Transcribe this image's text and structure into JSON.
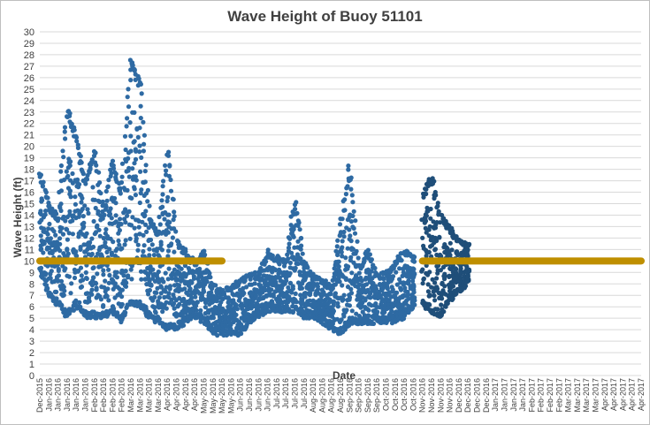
{
  "chart_data": {
    "type": "scatter",
    "title": "Wave Height of Buoy 51101",
    "xlabel": "Date",
    "ylabel": "Wave Height (ft)",
    "ylim": [
      0,
      30
    ],
    "y_ticks": [
      0,
      1,
      2,
      3,
      4,
      5,
      6,
      7,
      8,
      9,
      10,
      11,
      12,
      13,
      14,
      15,
      16,
      17,
      18,
      19,
      20,
      21,
      22,
      23,
      24,
      25,
      26,
      27,
      28,
      29,
      30
    ],
    "grid": "horizontal",
    "x_tick_labels": [
      "Dec-2015",
      "Jan-2016",
      "Jan-2016",
      "Jan-2016",
      "Jan-2016",
      "Jan-2016",
      "Feb-2016",
      "Feb-2016",
      "Feb-2016",
      "Feb-2016",
      "Mar-2016",
      "Mar-2016",
      "Mar-2016",
      "Mar-2016",
      "Apr-2016",
      "Apr-2016",
      "Apr-2016",
      "Apr-2016",
      "May-2016",
      "May-2016",
      "May-2016",
      "May-2016",
      "Jun-2016",
      "Jun-2016",
      "Jun-2016",
      "Jun-2016",
      "Jul-2016",
      "Jul-2016",
      "Jul-2016",
      "Jul-2016",
      "Aug-2016",
      "Aug-2016",
      "Aug-2016",
      "Aug-2016",
      "Sep-2016",
      "Sep-2016",
      "Sep-2016",
      "Sep-2016",
      "Oct-2016",
      "Oct-2016",
      "Oct-2016",
      "Oct-2016",
      "Nov-2016",
      "Nov-2016",
      "Nov-2016",
      "Nov-2016",
      "Dec-2016",
      "Dec-2016",
      "Dec-2016",
      "Dec-2016",
      "Jan-2017",
      "Jan-2017",
      "Jan-2017",
      "Jan-2017",
      "Feb-2017",
      "Feb-2017",
      "Feb-2017",
      "Feb-2017",
      "Mar-2017",
      "Mar-2017",
      "Mar-2017",
      "Mar-2017",
      "Apr-2017",
      "Apr-2017",
      "Apr-2017",
      "Apr-2017",
      "Apr-2017"
    ],
    "series": [
      {
        "color": "#2e6aa3",
        "x_range": [
          "Dec-2015",
          "Nov-2016"
        ],
        "envelope": [
          {
            "x": 0,
            "low": 9,
            "high": 18
          },
          {
            "x": 1,
            "low": 7,
            "high": 15
          },
          {
            "x": 2,
            "low": 6,
            "high": 14
          },
          {
            "x": 3,
            "low": 5,
            "high": 23.5
          },
          {
            "x": 4,
            "low": 6,
            "high": 21
          },
          {
            "x": 5,
            "low": 5,
            "high": 17
          },
          {
            "x": 6,
            "low": 5,
            "high": 20
          },
          {
            "x": 7,
            "low": 5,
            "high": 14
          },
          {
            "x": 8,
            "low": 5.5,
            "high": 19
          },
          {
            "x": 9,
            "low": 4.5,
            "high": 16
          },
          {
            "x": 10,
            "low": 6,
            "high": 28
          },
          {
            "x": 11,
            "low": 6,
            "high": 25.5
          },
          {
            "x": 12,
            "low": 5,
            "high": 14
          },
          {
            "x": 13,
            "low": 4.5,
            "high": 12.5
          },
          {
            "x": 14,
            "low": 4,
            "high": 20
          },
          {
            "x": 15,
            "low": 4,
            "high": 12
          },
          {
            "x": 16,
            "low": 4.5,
            "high": 11
          },
          {
            "x": 17,
            "low": 5,
            "high": 10
          },
          {
            "x": 18,
            "low": 4.5,
            "high": 11
          },
          {
            "x": 19,
            "low": 3.5,
            "high": 8
          },
          {
            "x": 20,
            "low": 3.5,
            "high": 7.5
          },
          {
            "x": 21,
            "low": 3.5,
            "high": 8
          },
          {
            "x": 22,
            "low": 3.5,
            "high": 8.5
          },
          {
            "x": 23,
            "low": 4.5,
            "high": 9
          },
          {
            "x": 24,
            "low": 5,
            "high": 9
          },
          {
            "x": 25,
            "low": 5.5,
            "high": 11
          },
          {
            "x": 26,
            "low": 5.5,
            "high": 10.5
          },
          {
            "x": 27,
            "low": 5.5,
            "high": 10
          },
          {
            "x": 28,
            "low": 5.5,
            "high": 15.5
          },
          {
            "x": 29,
            "low": 5,
            "high": 10
          },
          {
            "x": 30,
            "low": 5,
            "high": 9
          },
          {
            "x": 31,
            "low": 4.5,
            "high": 8.5
          },
          {
            "x": 32,
            "low": 4,
            "high": 8
          },
          {
            "x": 33,
            "low": 3.5,
            "high": 13
          },
          {
            "x": 34,
            "low": 4.5,
            "high": 18.5
          },
          {
            "x": 35,
            "low": 4.5,
            "high": 9.5
          },
          {
            "x": 36,
            "low": 4.5,
            "high": 11
          },
          {
            "x": 37,
            "low": 4.5,
            "high": 9
          },
          {
            "x": 38,
            "low": 4.5,
            "high": 9
          },
          {
            "x": 39,
            "low": 4.5,
            "high": 10
          },
          {
            "x": 40,
            "low": 5,
            "high": 11
          },
          {
            "x": 41,
            "low": 6,
            "high": 10.5
          }
        ]
      },
      {
        "color": "#1f4e79",
        "x_range": [
          "Nov-2016",
          "Dec-2016"
        ],
        "envelope": [
          {
            "x": 42,
            "low": 6,
            "high": 16
          },
          {
            "x": 43,
            "low": 5.5,
            "high": 17.5
          },
          {
            "x": 44,
            "low": 5,
            "high": 14
          },
          {
            "x": 45,
            "low": 6.5,
            "high": 13
          },
          {
            "x": 46,
            "low": 7,
            "high": 12
          },
          {
            "x": 47,
            "low": 8,
            "high": 11.5
          }
        ]
      },
      {
        "color": "#bf8f00",
        "segments": [
          {
            "x_start": 0,
            "x_end": 20,
            "y": 10
          },
          {
            "x_start": 42,
            "x_end": 66,
            "y": 10
          }
        ]
      }
    ]
  }
}
